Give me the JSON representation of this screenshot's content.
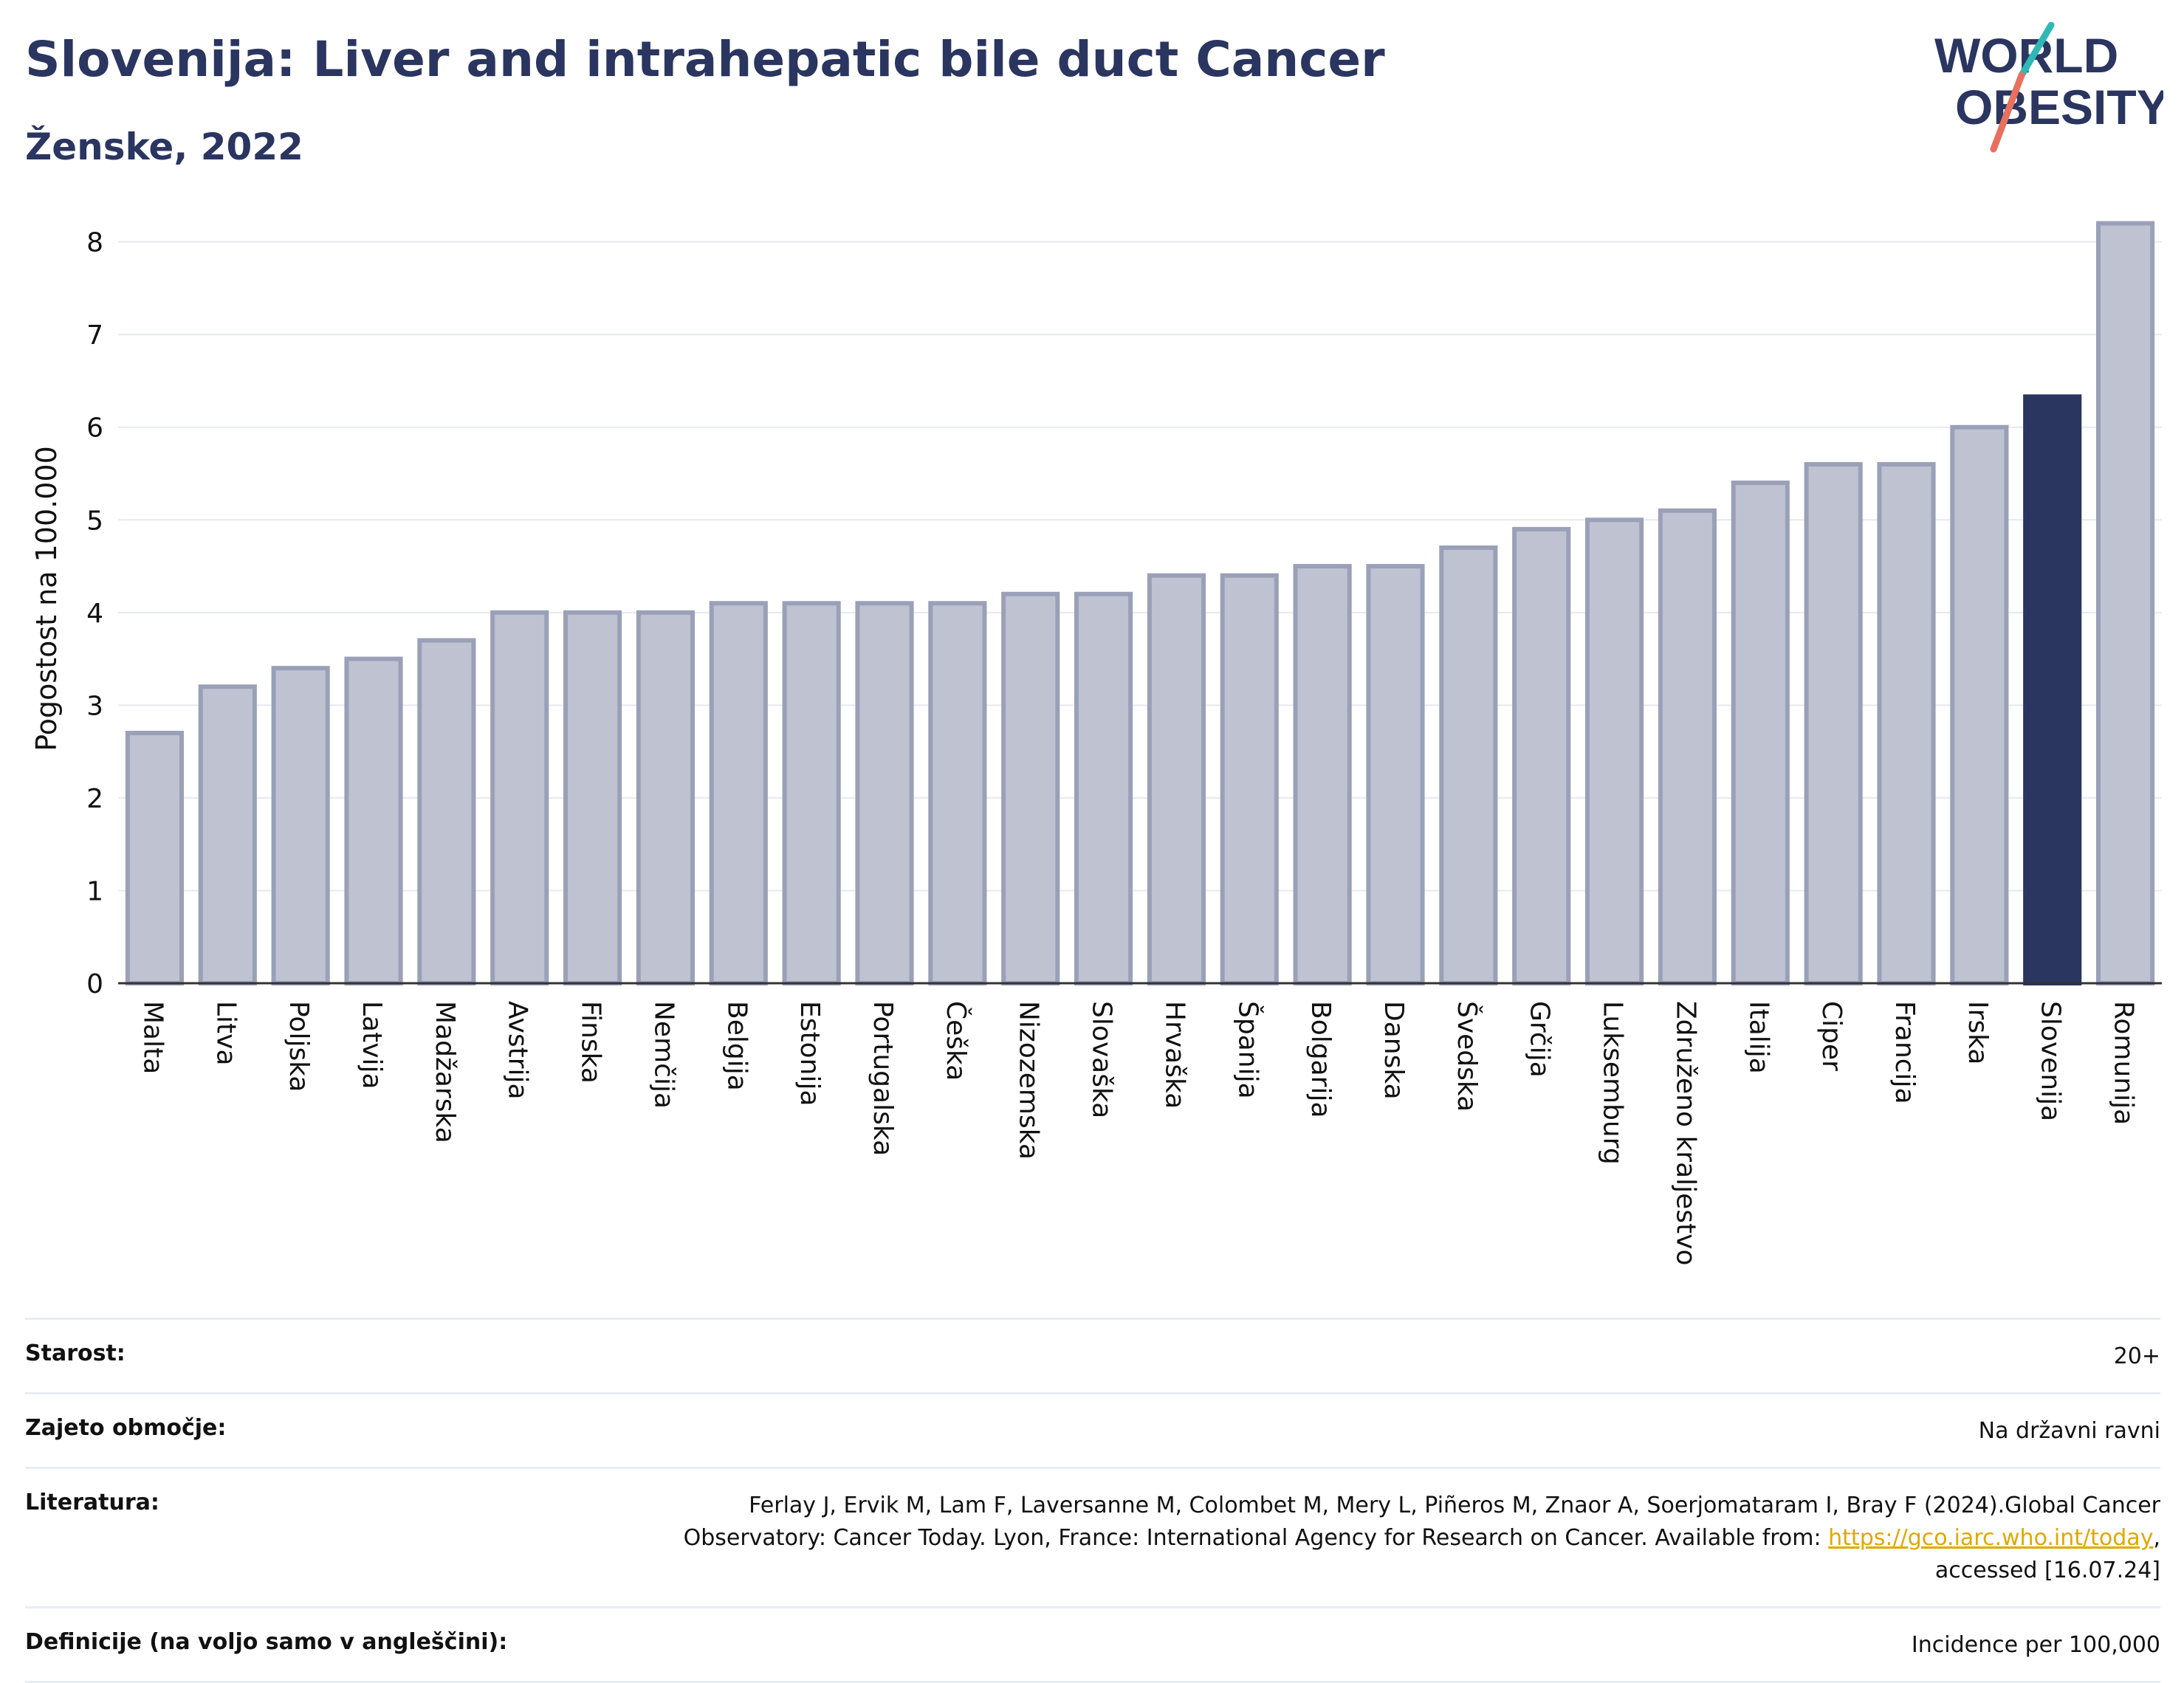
{
  "title": "Slovenija: Liver and intrahepatic bile duct Cancer",
  "subtitle": "Ženske, 2022",
  "logo": {
    "line1": "WORLD",
    "line2": "OBESITY",
    "accent_colors": [
      "#2fb8b5",
      "#e8705e"
    ]
  },
  "colors": {
    "bar": "#bfc3d1",
    "bar_border": "#9aa0b8",
    "highlight": "#2a3560",
    "grid": "#e6e9ef",
    "text": "#2a3560"
  },
  "chart_data": {
    "type": "bar",
    "title": "",
    "xlabel": "",
    "ylabel": "Pogostost na 100.000",
    "ylim": [
      0,
      8.3
    ],
    "yticks": [
      0,
      1,
      2,
      3,
      4,
      5,
      6,
      7,
      8
    ],
    "grid": true,
    "highlight": "Slovenija",
    "categories": [
      "Malta",
      "Litva",
      "Poljska",
      "Latvija",
      "Madžarska",
      "Avstrija",
      "Finska",
      "Nemčija",
      "Belgija",
      "Estonija",
      "Portugalska",
      "Češka",
      "Nizozemska",
      "Slovaška",
      "Hrvaška",
      "Španija",
      "Bolgarija",
      "Danska",
      "Švedska",
      "Grčija",
      "Luksemburg",
      "Združeno kraljestvo",
      "Italija",
      "Ciper",
      "Francija",
      "Irska",
      "Slovenija",
      "Romunija"
    ],
    "values": [
      2.7,
      3.2,
      3.4,
      3.5,
      3.7,
      4.0,
      4.0,
      4.0,
      4.1,
      4.1,
      4.1,
      4.1,
      4.2,
      4.2,
      4.4,
      4.4,
      4.5,
      4.5,
      4.7,
      4.9,
      5.0,
      5.1,
      5.4,
      5.6,
      5.6,
      6.0,
      6.33,
      8.2
    ]
  },
  "meta": {
    "age_label": "Starost:",
    "age_value": "20+",
    "area_label": "Zajeto območje:",
    "area_value": "Na državni ravni",
    "lit_label": "Literatura:",
    "lit_text_1": "Ferlay J, Ervik M, Lam F, Laversanne M, Colombet M, Mery L, Piñeros M, Znaor A, Soerjomataram I, Bray F (2024).Global Cancer",
    "lit_text_2": "Observatory: Cancer Today. Lyon, France: International Agency for Research on Cancer. Available from: ",
    "lit_link": "https://gco.iarc.who.int/today",
    "lit_text_3": ",",
    "lit_text_4": "accessed [16.07.24]",
    "def_label": "Definicije (na voljo samo v angleščini):",
    "def_value": "Incidence per 100,000"
  }
}
